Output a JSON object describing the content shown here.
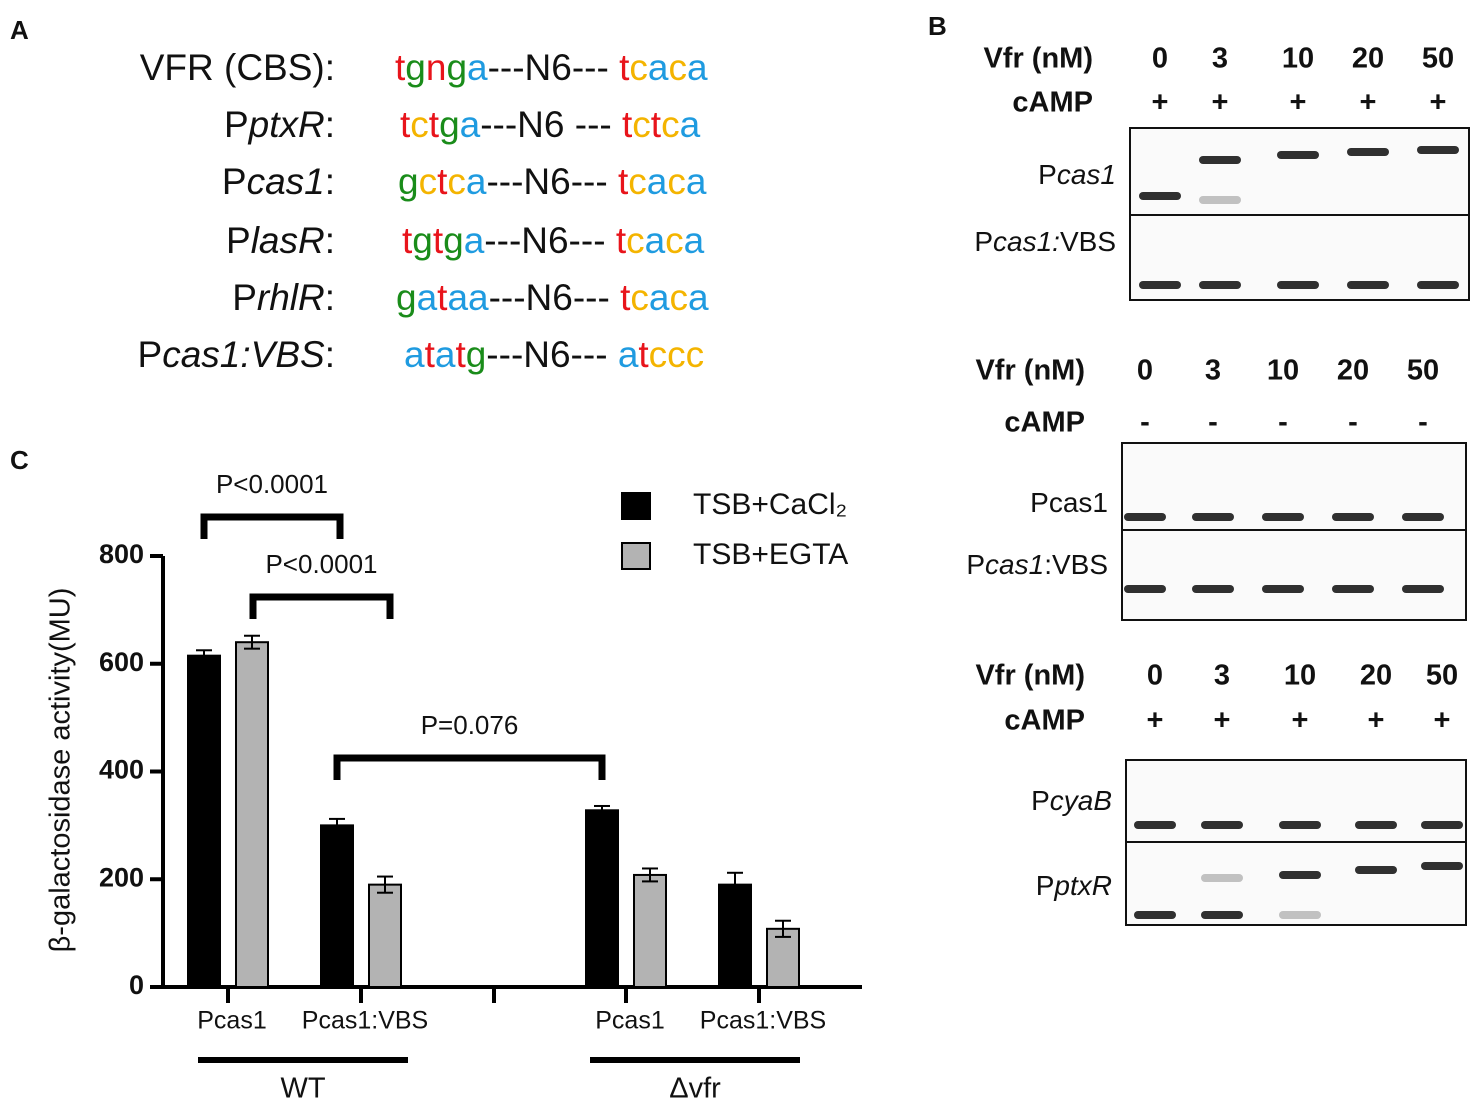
{
  "panel_a": {
    "letter": "A",
    "letter_colors": {
      "t": "#e8141b",
      "n": "#e8141b",
      "g": "#1a8c1a",
      "a": "#1f9be0",
      "c": "#f4b400"
    },
    "rows": [
      {
        "label": [
          "VFR (CBS):"
        ],
        "italic": [
          false
        ],
        "motif1": [
          "t",
          "g",
          "n",
          "g",
          "a"
        ],
        "spacer": "---N6---",
        "motif2": [
          "t",
          "c",
          "a",
          "c",
          "a"
        ]
      },
      {
        "label": [
          "P",
          "ptxR",
          ":"
        ],
        "italic": [
          false,
          true,
          false
        ],
        "motif1": [
          "t",
          "c",
          "t",
          "g",
          "a"
        ],
        "spacer": "---N6 ---",
        "motif2": [
          "t",
          "c",
          "t",
          "c",
          "a"
        ]
      },
      {
        "label": [
          "P",
          "cas1",
          ":"
        ],
        "italic": [
          false,
          true,
          false
        ],
        "motif1": [
          "g",
          "c",
          "t",
          "c",
          "a"
        ],
        "spacer": "---N6---",
        "motif2": [
          "t",
          "c",
          "a",
          "c",
          "a"
        ]
      },
      {
        "label": [
          "P",
          "lasR",
          ":"
        ],
        "italic": [
          false,
          true,
          false
        ],
        "motif1": [
          "t",
          "g",
          "t",
          "g",
          "a"
        ],
        "spacer": "---N6---",
        "motif2": [
          "t",
          "c",
          "a",
          "c",
          "a"
        ]
      },
      {
        "label": [
          "P",
          "rhlR",
          ":"
        ],
        "italic": [
          false,
          true,
          false
        ],
        "motif1": [
          "g",
          "a",
          "t",
          "a",
          "a"
        ],
        "spacer": "---N6---",
        "motif2": [
          "t",
          "c",
          "a",
          "c",
          "a"
        ]
      },
      {
        "label": [
          "P",
          "cas1:VBS",
          ":"
        ],
        "italic": [
          false,
          true,
          false
        ],
        "motif1": [
          "a",
          "t",
          "a",
          "t",
          "g"
        ],
        "spacer": "---N6---",
        "motif2": [
          "a",
          "t",
          "c",
          "c",
          "c"
        ]
      }
    ]
  },
  "panel_b": {
    "letter": "B",
    "gels": [
      {
        "vfr_label": "Vfr (nM)",
        "vfr": [
          0,
          3,
          10,
          20,
          50
        ],
        "camp_label": "cAMP",
        "camp": [
          "+",
          "+",
          "+",
          "+",
          "+"
        ],
        "lanes": [
          {
            "label": [
              "P",
              "cas1"
            ],
            "italic": [
              false,
              true
            ]
          },
          {
            "label": [
              "P",
              "cas1:",
              "VBS"
            ],
            "italic": [
              false,
              true,
              false
            ]
          }
        ]
      },
      {
        "vfr_label": "Vfr (nM)",
        "vfr": [
          0,
          3,
          10,
          20,
          50
        ],
        "camp_label": "cAMP",
        "camp": [
          "-",
          "-",
          "-",
          "-",
          "-"
        ],
        "lanes": [
          {
            "label": [
              "Pcas1"
            ],
            "italic": [
              false
            ]
          },
          {
            "label": [
              "P",
              "cas1",
              ":VBS"
            ],
            "italic": [
              false,
              true,
              false
            ]
          }
        ]
      },
      {
        "vfr_label": "Vfr (nM)",
        "vfr": [
          0,
          3,
          10,
          20,
          50
        ],
        "camp_label": "cAMP",
        "camp": [
          "+",
          "+",
          "+",
          "+",
          "+"
        ],
        "lanes": [
          {
            "label": [
              "P",
              "cyaB"
            ],
            "italic": [
              false,
              true
            ]
          },
          {
            "label": [
              "P",
              "ptxR"
            ],
            "italic": [
              false,
              true
            ]
          }
        ]
      }
    ]
  },
  "chart_data": {
    "type": "bar",
    "letter": "C",
    "ylabel": "β-galactosidase activity(MU)",
    "categories": [
      "Pcas1",
      "Pcas1:VBS",
      "Pcas1",
      "Pcas1:VBS"
    ],
    "groups": [
      "WT",
      "Δvfr"
    ],
    "series": [
      {
        "name": "TSB+CaCl₂",
        "color": "#000000",
        "values": [
          615,
          300,
          328,
          190
        ],
        "errors": [
          10,
          12,
          8,
          22
        ]
      },
      {
        "name": "TSB+EGTA",
        "color": "#b3b3b3",
        "values": [
          640,
          190,
          208,
          108
        ],
        "errors": [
          12,
          15,
          12,
          15
        ]
      }
    ],
    "ylim": [
      0,
      800
    ],
    "yticks": [
      0,
      200,
      400,
      600,
      800
    ],
    "annotations": [
      "P<0.0001",
      "P<0.0001",
      "P=0.076"
    ]
  }
}
